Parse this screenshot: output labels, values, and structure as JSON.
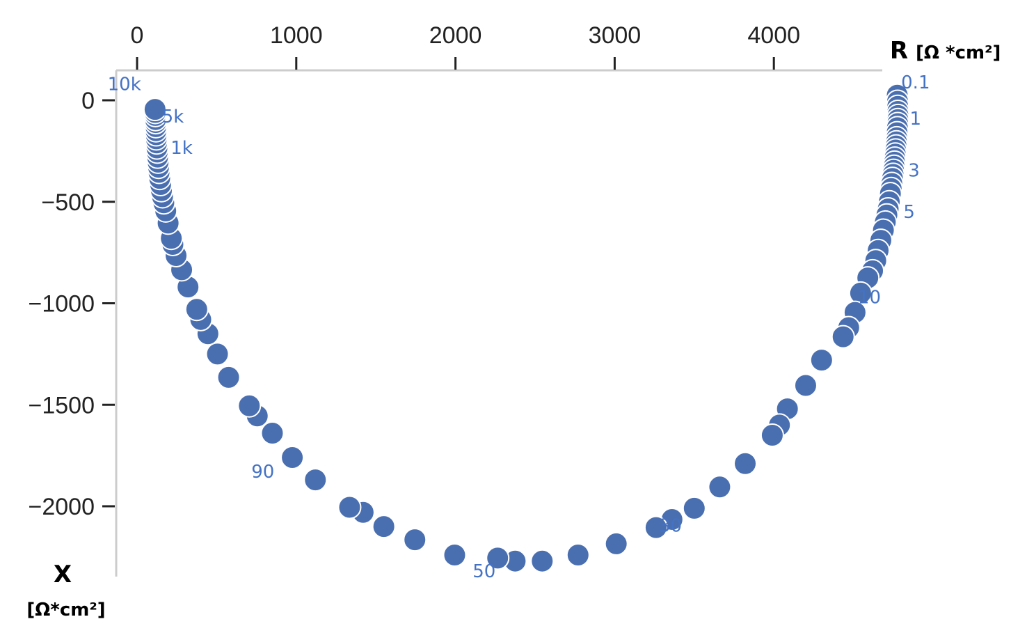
{
  "chart_data": {
    "type": "scatter",
    "x_axis": {
      "title": "R",
      "unit": "[Ω *cm²]",
      "ticks": [
        "0",
        "1000",
        "2000",
        "3000",
        "4000"
      ],
      "range": [
        -100,
        4700
      ],
      "position": "top"
    },
    "y_axis": {
      "title": "X",
      "unit": "[Ω*cm²]",
      "ticks": [
        "0",
        "−500",
        "−1000",
        "−1500",
        "−2000"
      ],
      "range": [
        -2350,
        150
      ],
      "position": "left"
    },
    "grid": false,
    "legend": "none",
    "marker_color": "#4a6fb0",
    "label_color": "#4472c4",
    "series": [
      {
        "points": [
          [
            4775,
            25
          ],
          [
            4777,
            -5
          ],
          [
            4778,
            -30
          ],
          [
            4779,
            -55
          ],
          [
            4780,
            -75
          ],
          [
            4779,
            -95
          ],
          [
            4778,
            -115
          ],
          [
            4776,
            -135
          ],
          [
            4774,
            -160
          ],
          [
            4772,
            -185
          ],
          [
            4770,
            -205
          ],
          [
            4768,
            -225
          ],
          [
            4765,
            -245
          ],
          [
            4763,
            -265
          ],
          [
            4760,
            -285
          ],
          [
            4758,
            -305
          ],
          [
            4755,
            -325
          ],
          [
            4752,
            -345
          ],
          [
            4749,
            -365
          ],
          [
            4745,
            -385
          ],
          [
            4741,
            -410
          ],
          [
            4737,
            -435
          ],
          [
            4732,
            -460
          ],
          [
            4725,
            -500
          ],
          [
            4718,
            -535
          ],
          [
            4710,
            -565
          ],
          [
            4700,
            -600
          ],
          [
            4688,
            -640
          ],
          [
            4672,
            -690
          ],
          [
            4655,
            -740
          ],
          [
            4640,
            -790
          ],
          [
            4620,
            -840
          ],
          [
            4590,
            -875
          ],
          [
            4545,
            -950
          ],
          [
            4510,
            -1045
          ],
          [
            4470,
            -1120
          ],
          [
            4435,
            -1165
          ],
          [
            4300,
            -1280
          ],
          [
            4200,
            -1405
          ],
          [
            4085,
            -1520
          ],
          [
            4035,
            -1600
          ],
          [
            3990,
            -1650
          ],
          [
            3820,
            -1790
          ],
          [
            3660,
            -1905
          ],
          [
            3500,
            -2010
          ],
          [
            3360,
            -2065
          ],
          [
            3260,
            -2105
          ],
          [
            3010,
            -2185
          ],
          [
            2770,
            -2240
          ],
          [
            2545,
            -2270
          ],
          [
            2375,
            -2270
          ],
          [
            2265,
            -2255
          ],
          [
            1995,
            -2240
          ],
          [
            1745,
            -2165
          ],
          [
            1550,
            -2100
          ],
          [
            1420,
            -2030
          ],
          [
            1335,
            -2005
          ],
          [
            1120,
            -1870
          ],
          [
            975,
            -1760
          ],
          [
            850,
            -1640
          ],
          [
            755,
            -1555
          ],
          [
            705,
            -1505
          ],
          [
            575,
            -1365
          ],
          [
            505,
            -1250
          ],
          [
            445,
            -1150
          ],
          [
            400,
            -1080
          ],
          [
            375,
            -1030
          ],
          [
            320,
            -920
          ],
          [
            280,
            -835
          ],
          [
            245,
            -765
          ],
          [
            225,
            -710
          ],
          [
            215,
            -680
          ],
          [
            195,
            -605
          ],
          [
            180,
            -545
          ],
          [
            168,
            -505
          ],
          [
            160,
            -475
          ],
          [
            153,
            -445
          ],
          [
            148,
            -415
          ],
          [
            142,
            -385
          ],
          [
            138,
            -355
          ],
          [
            135,
            -330
          ],
          [
            132,
            -305
          ],
          [
            129,
            -280
          ],
          [
            127,
            -255
          ],
          [
            125,
            -235
          ],
          [
            123,
            -210
          ],
          [
            121,
            -190
          ],
          [
            120,
            -170
          ],
          [
            119,
            -150
          ],
          [
            118,
            -130
          ],
          [
            117,
            -110
          ],
          [
            116,
            -95
          ],
          [
            115,
            -75
          ],
          [
            114,
            -60
          ],
          [
            113,
            -45
          ]
        ]
      }
    ],
    "annotations": [
      {
        "text": "0.1",
        "x": 4890,
        "y": 58
      },
      {
        "text": "1",
        "x": 4890,
        "y": -120
      },
      {
        "text": "3",
        "x": 4880,
        "y": -375
      },
      {
        "text": "5",
        "x": 4850,
        "y": -580
      },
      {
        "text": "10",
        "x": 4600,
        "y": -1000
      },
      {
        "text": "30",
        "x": 3350,
        "y": -2125
      },
      {
        "text": "50",
        "x": 2180,
        "y": -2350
      },
      {
        "text": "90",
        "x": 790,
        "y": -1860
      },
      {
        "text": "1k",
        "x": 280,
        "y": -265
      },
      {
        "text": "5k",
        "x": 225,
        "y": -110
      },
      {
        "text": "10k",
        "x": -80,
        "y": 50
      }
    ]
  }
}
